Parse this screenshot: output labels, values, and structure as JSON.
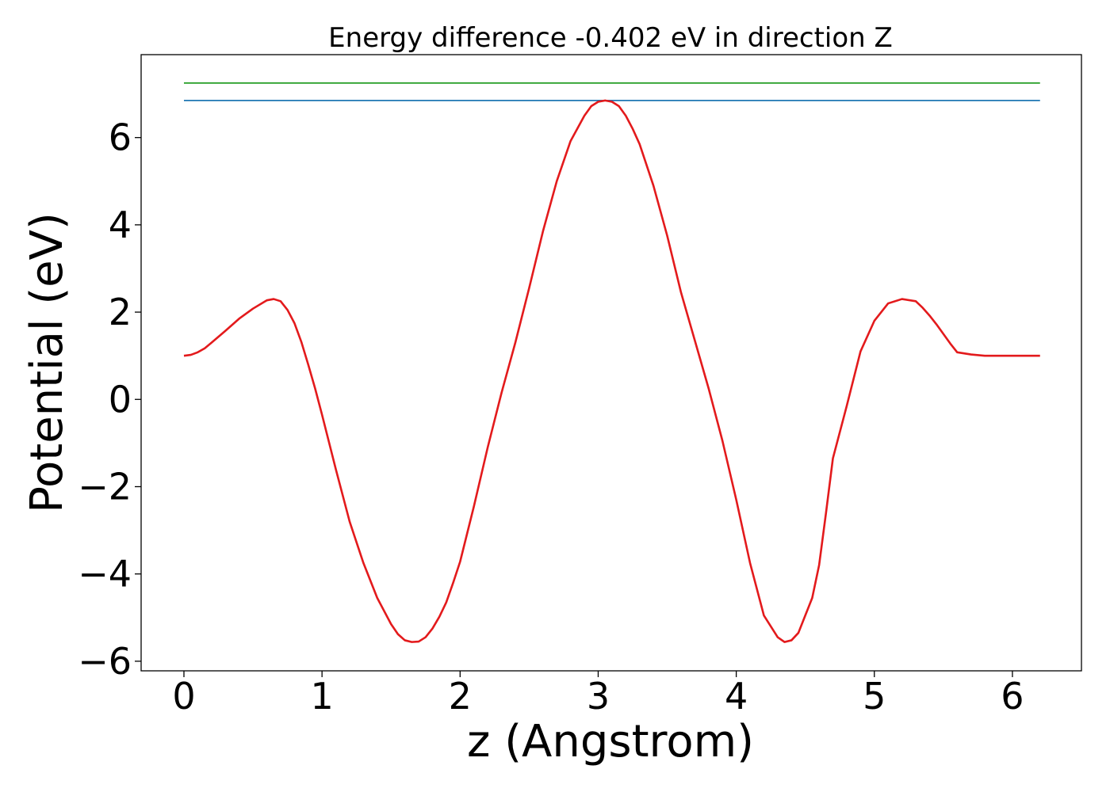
{
  "chart_data": {
    "type": "line",
    "title": "Energy difference -0.402 eV in direction Z",
    "xlabel": "z (Angstrom)",
    "ylabel": "Potential (eV)",
    "xlim": [
      -0.31,
      6.5
    ],
    "ylim": [
      -6.22,
      7.9
    ],
    "x_ticks": [
      0,
      1,
      2,
      3,
      4,
      5,
      6
    ],
    "x_tick_labels": [
      "0",
      "1",
      "2",
      "3",
      "4",
      "5",
      "6"
    ],
    "y_ticks": [
      -6,
      -4,
      -2,
      0,
      2,
      4,
      6
    ],
    "y_tick_labels": [
      "−6",
      "−4",
      "−2",
      "0",
      "2",
      "4",
      "6"
    ],
    "grid": false,
    "series": [
      {
        "color": "#2ca02c",
        "x": [
          0,
          6.2
        ],
        "y": [
          7.25,
          7.25
        ]
      },
      {
        "color": "#1f77b4",
        "x": [
          0,
          6.2
        ],
        "y": [
          6.85,
          6.85
        ]
      },
      {
        "color": "#e31a1c",
        "x": [
          0,
          0.05,
          0.1,
          0.15,
          0.2,
          0.3,
          0.4,
          0.5,
          0.6,
          0.65,
          0.7,
          0.75,
          0.8,
          0.85,
          0.9,
          0.95,
          1.0,
          1.1,
          1.2,
          1.3,
          1.4,
          1.5,
          1.55,
          1.6,
          1.65,
          1.7,
          1.75,
          1.8,
          1.85,
          1.9,
          1.95,
          2.0,
          2.1,
          2.2,
          2.3,
          2.4,
          2.5,
          2.6,
          2.7,
          2.8,
          2.9,
          2.95,
          3.0,
          3.05,
          3.1,
          3.15,
          3.2,
          3.25,
          3.3,
          3.4,
          3.5,
          3.6,
          3.7,
          3.8,
          3.9,
          4.0,
          4.1,
          4.2,
          4.3,
          4.35,
          4.4,
          4.45,
          4.5,
          4.55,
          4.6,
          4.65,
          4.7,
          4.8,
          4.9,
          5.0,
          5.1,
          5.2,
          5.3,
          5.35,
          5.4,
          5.45,
          5.5,
          5.55,
          5.6,
          5.7,
          5.8,
          5.9,
          6.0,
          6.05,
          6.1,
          6.15,
          6.2
        ],
        "y": [
          1.0,
          1.02,
          1.08,
          1.17,
          1.3,
          1.57,
          1.85,
          2.08,
          2.27,
          2.3,
          2.25,
          2.05,
          1.75,
          1.32,
          0.8,
          0.25,
          -0.35,
          -1.6,
          -2.8,
          -3.75,
          -4.55,
          -5.15,
          -5.38,
          -5.52,
          -5.56,
          -5.55,
          -5.45,
          -5.25,
          -4.98,
          -4.65,
          -4.2,
          -3.72,
          -2.45,
          -1.1,
          0.15,
          1.3,
          2.55,
          3.85,
          5.0,
          5.92,
          6.5,
          6.72,
          6.82,
          6.85,
          6.82,
          6.72,
          6.5,
          6.2,
          5.85,
          4.9,
          3.75,
          2.45,
          1.35,
          0.25,
          -0.95,
          -2.3,
          -3.75,
          -4.95,
          -5.45,
          -5.56,
          -5.52,
          -5.35,
          -4.95,
          -4.55,
          -3.8,
          -2.6,
          -1.35,
          -0.15,
          1.1,
          1.8,
          2.2,
          2.3,
          2.25,
          2.1,
          1.92,
          1.72,
          1.5,
          1.28,
          1.08,
          1.03,
          1.0,
          1.0,
          1.0,
          1.0,
          1.0,
          1.0,
          1.0
        ]
      }
    ]
  }
}
